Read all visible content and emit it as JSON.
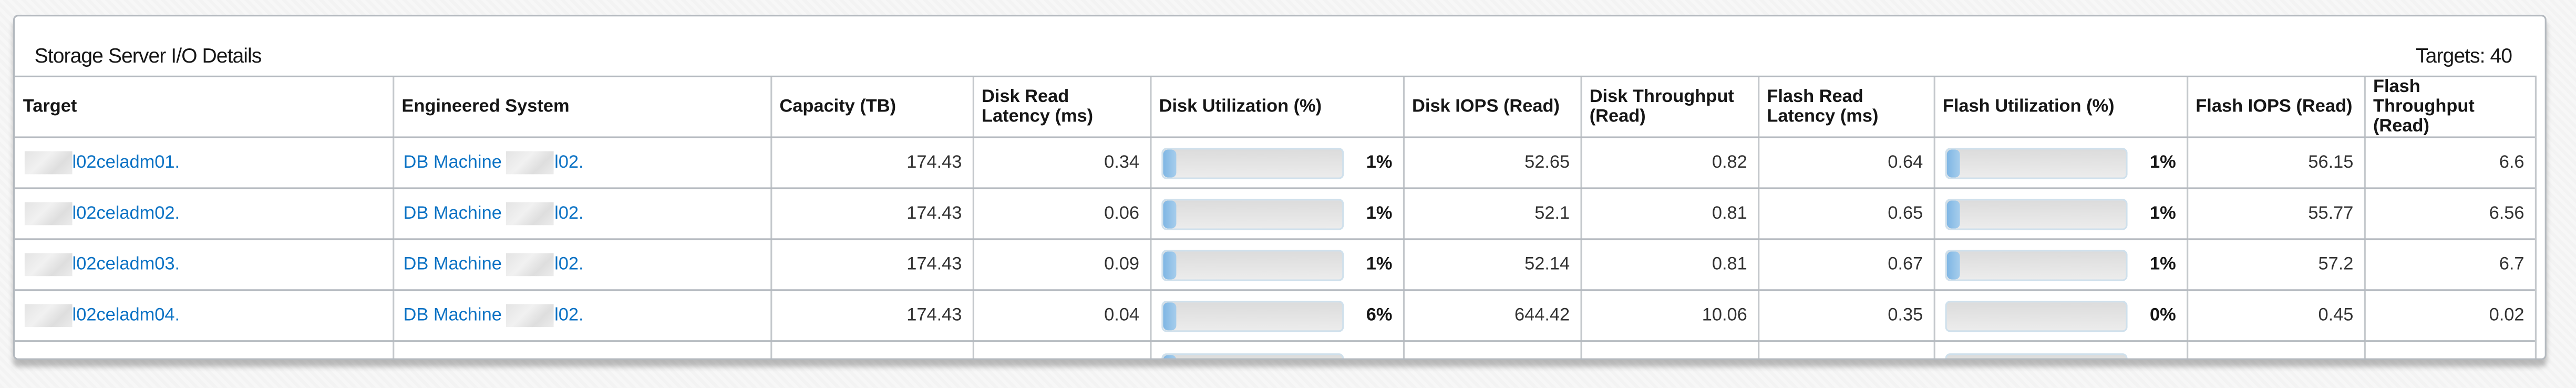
{
  "panel": {
    "title": "Storage Server I/O Details",
    "count_label": "Targets: 40"
  },
  "colors": {
    "link": "#0b72c4",
    "bar_fill": "#8ec0e8",
    "bar_track": "#e2e2e2"
  },
  "columns": [
    "Target",
    "Engineered System",
    "Capacity (TB)",
    "Disk Read Latency (ms)",
    "Disk Utilization (%)",
    "Disk IOPS (Read)",
    "Disk Throughput (Read)",
    "Flash Read Latency (ms)",
    "Flash Utilization (%)",
    "Flash IOPS (Read)",
    "Flash Throughput (Read)"
  ],
  "rows": [
    {
      "target": "l02celadm01.",
      "system_prefix": "DB Machine",
      "system_suffix": "l02.",
      "capacity": "174.43",
      "disk_latency": "0.34",
      "disk_util": 1,
      "disk_util_label": "1%",
      "disk_iops": "52.65",
      "disk_tp": "0.82",
      "flash_latency": "0.64",
      "flash_util": 1,
      "flash_util_label": "1%",
      "flash_iops": "56.15",
      "flash_tp": "6.6"
    },
    {
      "target": "l02celadm02.",
      "system_prefix": "DB Machine",
      "system_suffix": "l02.",
      "capacity": "174.43",
      "disk_latency": "0.06",
      "disk_util": 1,
      "disk_util_label": "1%",
      "disk_iops": "52.1",
      "disk_tp": "0.81",
      "flash_latency": "0.65",
      "flash_util": 1,
      "flash_util_label": "1%",
      "flash_iops": "55.77",
      "flash_tp": "6.56"
    },
    {
      "target": "l02celadm03.",
      "system_prefix": "DB Machine",
      "system_suffix": "l02.",
      "capacity": "174.43",
      "disk_latency": "0.09",
      "disk_util": 1,
      "disk_util_label": "1%",
      "disk_iops": "52.14",
      "disk_tp": "0.81",
      "flash_latency": "0.67",
      "flash_util": 1,
      "flash_util_label": "1%",
      "flash_iops": "57.2",
      "flash_tp": "6.7"
    },
    {
      "target": "l02celadm04.",
      "system_prefix": "DB Machine",
      "system_suffix": "l02.",
      "capacity": "174.43",
      "disk_latency": "0.04",
      "disk_util": 6,
      "disk_util_label": "6%",
      "disk_iops": "644.42",
      "disk_tp": "10.06",
      "flash_latency": "0.35",
      "flash_util": 0,
      "flash_util_label": "0%",
      "flash_iops": "0.45",
      "flash_tp": "0.02"
    }
  ]
}
